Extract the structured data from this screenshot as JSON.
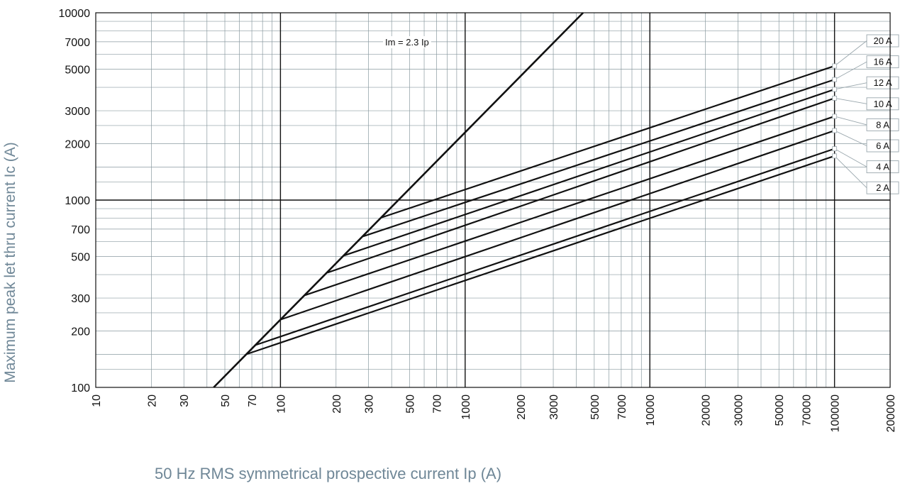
{
  "chart_data": {
    "type": "line",
    "xscale": "log",
    "yscale": "log",
    "xlim": [
      10,
      200000
    ],
    "ylim": [
      100,
      10000
    ],
    "grid": true,
    "xlabel": "50 Hz RMS symmetrical prospective current Ip (A)",
    "ylabel": "Maximum peak let thru current Ic (A)",
    "x_ticks": [
      10,
      20,
      30,
      50,
      70,
      100,
      200,
      300,
      500,
      700,
      1000,
      2000,
      3000,
      5000,
      7000,
      10000,
      20000,
      30000,
      50000,
      70000,
      100000,
      200000
    ],
    "y_ticks": [
      100,
      200,
      300,
      500,
      700,
      1000,
      2000,
      3000,
      5000,
      7000,
      10000
    ],
    "reference_line": {
      "label": "Im = 2.3 Ip",
      "x": [
        43.5,
        4350
      ],
      "y": [
        100,
        10000
      ]
    },
    "series": [
      {
        "name": "20 A",
        "x": [
          350,
          100000
        ],
        "y": [
          805,
          5200
        ]
      },
      {
        "name": "16 A",
        "x": [
          280,
          100000
        ],
        "y": [
          640,
          4400
        ]
      },
      {
        "name": "12 A",
        "x": [
          220,
          100000
        ],
        "y": [
          505,
          3900
        ]
      },
      {
        "name": "10 A",
        "x": [
          180,
          100000
        ],
        "y": [
          410,
          3500
        ]
      },
      {
        "name": "8 A",
        "x": [
          135,
          100000
        ],
        "y": [
          310,
          2800
        ]
      },
      {
        "name": "6 A",
        "x": [
          100,
          100000
        ],
        "y": [
          230,
          2350
        ]
      },
      {
        "name": "4 A",
        "x": [
          73,
          100000
        ],
        "y": [
          168,
          1880
        ]
      },
      {
        "name": "2 A",
        "x": [
          65,
          100000
        ],
        "y": [
          150,
          1720
        ]
      }
    ]
  }
}
